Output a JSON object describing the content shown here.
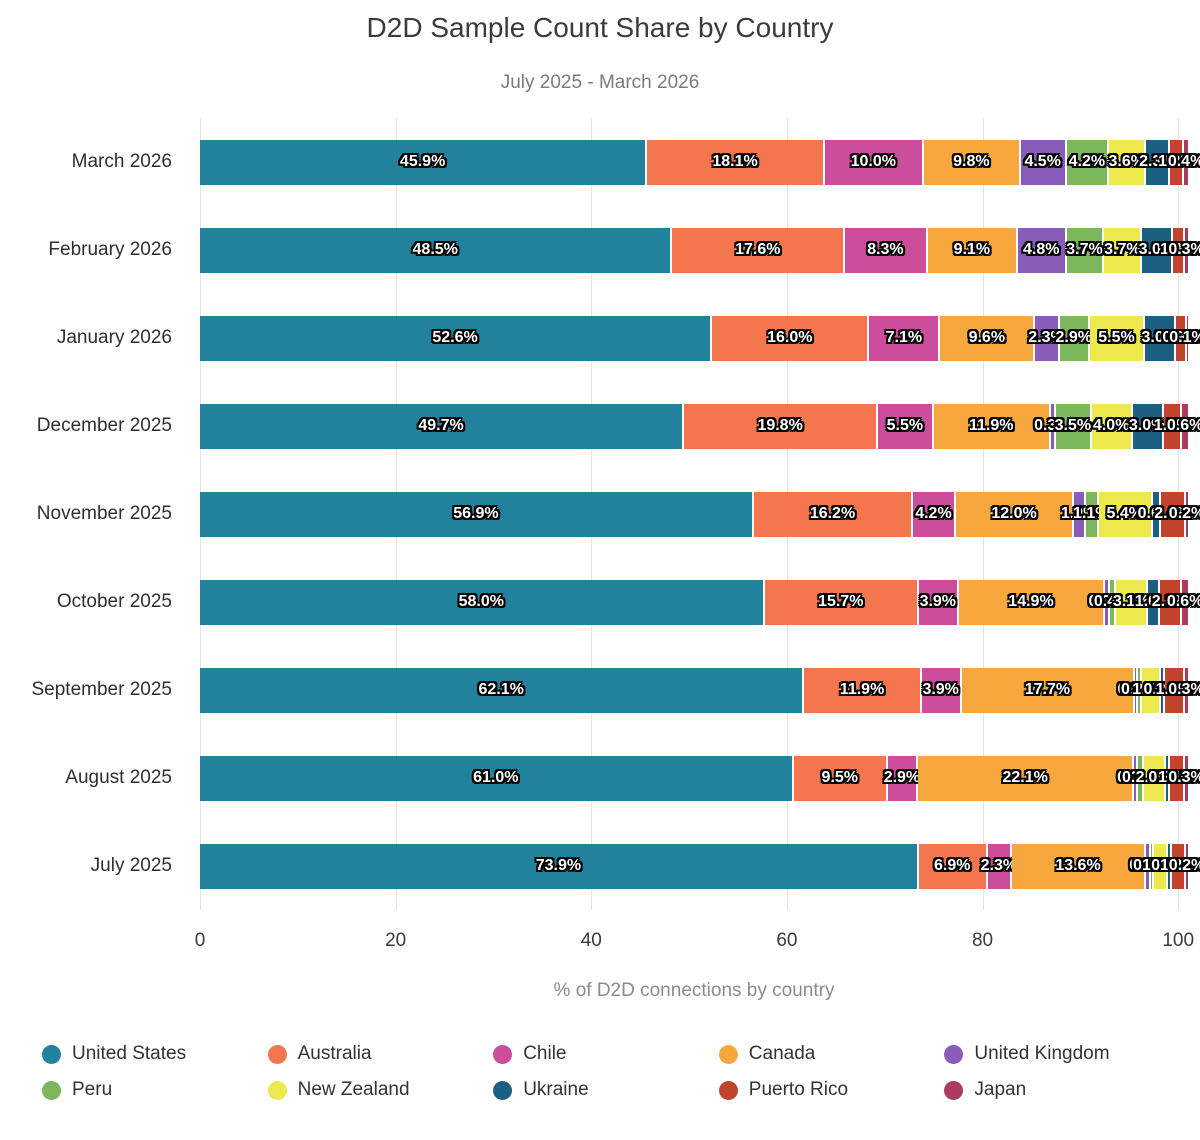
{
  "title": "D2D Sample Count Share by Country",
  "subtitle": "July 2025 - March 2026",
  "chart_data": {
    "type": "bar",
    "orientation": "horizontal",
    "stacked": true,
    "title": "D2D Sample Count Share by Country",
    "subtitle": "July 2025 - March 2026",
    "xlabel": "% of D2D connections by country",
    "xticks": [
      0,
      20,
      40,
      60,
      80,
      100
    ],
    "xmax": 101,
    "grid": "vertical",
    "legend_position": "bottom",
    "value_suffix": "%",
    "categories": [
      "March 2026",
      "February 2026",
      "January 2026",
      "December 2025",
      "November 2025",
      "October 2025",
      "September 2025",
      "August 2025",
      "July 2025"
    ],
    "series": [
      {
        "name": "United States",
        "color": "#22829e",
        "values": [
          45.9,
          48.5,
          52.6,
          49.7,
          56.9,
          58.0,
          62.1,
          61.0,
          73.9
        ]
      },
      {
        "name": "Australia",
        "color": "#f4764e",
        "values": [
          18.1,
          17.6,
          16.0,
          19.8,
          16.2,
          15.7,
          11.9,
          9.5,
          6.9
        ]
      },
      {
        "name": "Chile",
        "color": "#cb4d9b",
        "values": [
          10.0,
          8.3,
          7.1,
          5.5,
          4.2,
          3.9,
          3.9,
          2.9,
          2.3
        ]
      },
      {
        "name": "Canada",
        "color": "#f6a83f",
        "values": [
          9.8,
          9.1,
          9.6,
          11.9,
          12.0,
          14.9,
          17.7,
          22.1,
          13.6
        ]
      },
      {
        "name": "United Kingdom",
        "color": "#8a5cba",
        "values": [
          4.5,
          4.8,
          2.3,
          0.3,
          1.0,
          0.3,
          0.1,
          0.2,
          0.3
        ]
      },
      {
        "name": "Peru",
        "color": "#7cb75e",
        "values": [
          4.2,
          3.7,
          2.9,
          3.5,
          1.1,
          0.4,
          0.2,
          0.4,
          0.1
        ]
      },
      {
        "name": "New Zealand",
        "color": "#ece84d",
        "values": [
          3.6,
          3.7,
          5.5,
          4.0,
          5.4,
          3.1,
          1.7,
          2.0,
          1.3
        ]
      },
      {
        "name": "Ukraine",
        "color": "#1d5f80",
        "values": [
          2.3,
          3.0,
          3.0,
          3.0,
          0.6,
          1.0,
          0.2,
          0.2,
          0.2
        ]
      },
      {
        "name": "Puerto Rico",
        "color": "#c2432e",
        "values": [
          1.2,
          1.0,
          0.9,
          1.7,
          2.4,
          2.1,
          1.9,
          1.4,
          1.2
        ]
      },
      {
        "name": "Japan",
        "color": "#ab3a60",
        "values": [
          0.4,
          0.3,
          0.1,
          0.6,
          0.2,
          0.6,
          0.3,
          0.3,
          0.2
        ]
      }
    ]
  }
}
